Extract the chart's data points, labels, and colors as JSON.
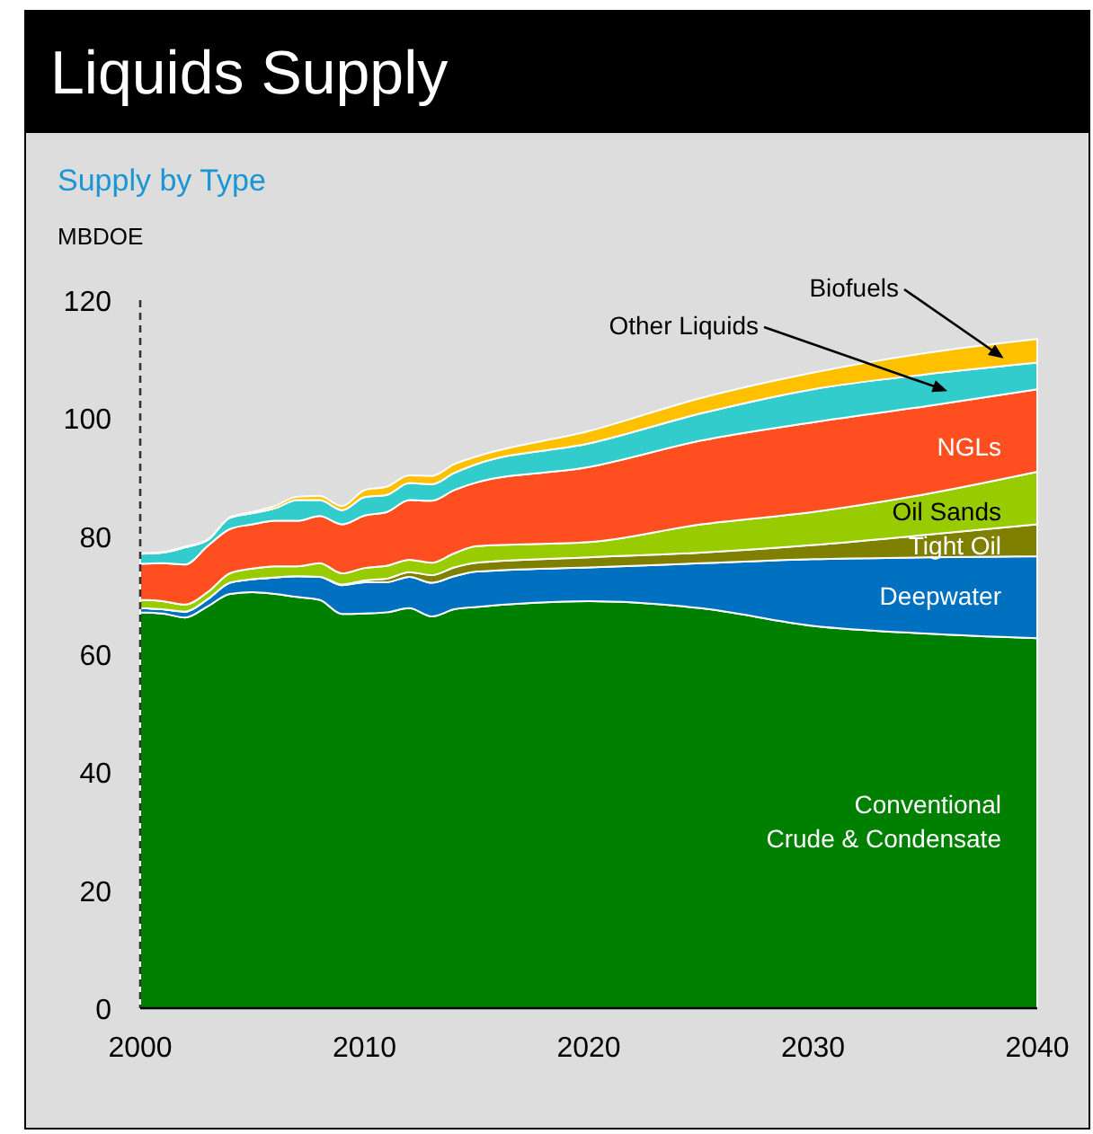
{
  "chart_data": {
    "type": "area",
    "stacked": true,
    "title": "Liquids Supply",
    "subtitle": "Supply by Type",
    "ylabel": "MBDOE",
    "x": [
      2000,
      2001,
      2002,
      2003,
      2004,
      2005,
      2006,
      2007,
      2008,
      2009,
      2010,
      2011,
      2012,
      2013,
      2014,
      2015,
      2020,
      2025,
      2030,
      2035,
      2040
    ],
    "xlim": [
      2000,
      2040
    ],
    "xticks": [
      2000,
      2010,
      2020,
      2030,
      2040
    ],
    "ylim": [
      0,
      120
    ],
    "yticks": [
      0,
      20,
      40,
      60,
      80,
      100,
      120
    ],
    "grid": false,
    "series": [
      {
        "name": "Conventional Crude & Condensate",
        "color": "#008000",
        "values": [
          67.1,
          66.9,
          66.2,
          68.1,
          70.2,
          70.5,
          70.2,
          69.7,
          69.2,
          66.8,
          66.9,
          67.1,
          67.8,
          66.4,
          67.6,
          68.0,
          69.0,
          67.8,
          64.8,
          63.5,
          62.7
        ]
      },
      {
        "name": "Deepwater",
        "color": "#0070c0",
        "values": [
          0.7,
          0.7,
          1.0,
          1.2,
          1.9,
          2.2,
          2.8,
          3.5,
          3.9,
          4.9,
          5.3,
          5.1,
          5.3,
          5.7,
          5.6,
          6.0,
          5.7,
          7.6,
          11.3,
          12.9,
          13.9
        ]
      },
      {
        "name": "Tight Oil",
        "color": "#808000",
        "values": [
          0,
          0,
          0,
          0,
          0,
          0,
          0,
          0,
          0,
          0.1,
          0.3,
          0.6,
          0.8,
          1.3,
          1.5,
          1.5,
          1.7,
          1.8,
          2.4,
          3.8,
          5.4
        ]
      },
      {
        "name": "Oil Sands",
        "color": "#99cc00",
        "values": [
          1.4,
          1.4,
          1.2,
          1.2,
          1.6,
          1.8,
          1.9,
          1.7,
          2.3,
          1.9,
          2.1,
          2.2,
          2.1,
          2.1,
          2.4,
          2.8,
          2.6,
          4.8,
          5.6,
          6.9,
          8.9
        ]
      },
      {
        "name": "NGLs",
        "color": "#ff4f21",
        "values": [
          6.1,
          6.4,
          6.8,
          7.8,
          7.5,
          7.5,
          7.7,
          7.7,
          8.0,
          8.3,
          8.9,
          9.1,
          10.1,
          10.5,
          10.7,
          10.8,
          12.7,
          14.2,
          15.2,
          14.9,
          14.0
        ]
      },
      {
        "name": "Other Liquids",
        "color": "#33cccc",
        "values": [
          1.7,
          1.8,
          2.9,
          1.0,
          1.9,
          1.9,
          2.1,
          3.5,
          2.7,
          2.4,
          3.1,
          2.9,
          2.9,
          2.8,
          2.9,
          3.1,
          4.0,
          4.6,
          5.6,
          5.4,
          4.5
        ]
      },
      {
        "name": "Biofuels",
        "color": "#ffc000",
        "values": [
          0.1,
          0.1,
          0.1,
          0.1,
          0.1,
          0.2,
          0.4,
          0.6,
          0.7,
          0.7,
          1.2,
          1.4,
          1.3,
          1.4,
          1.5,
          1.3,
          2.1,
          2.6,
          2.8,
          3.6,
          4.0
        ]
      }
    ]
  }
}
